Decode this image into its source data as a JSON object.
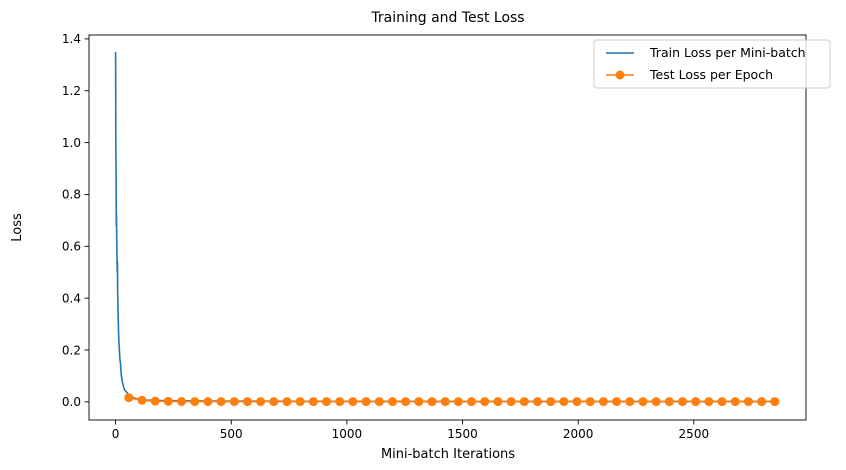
{
  "chart_data": {
    "type": "line",
    "title": "Training and Test Loss",
    "xlabel": "Mini-batch Iterations",
    "ylabel": "Loss",
    "xlim": [
      -115,
      2985
    ],
    "ylim": [
      -0.07,
      1.415
    ],
    "x_ticks": [
      0,
      500,
      1000,
      1500,
      2000,
      2500
    ],
    "x_tick_labels": [
      "0",
      "500",
      "1000",
      "1500",
      "2000",
      "2500"
    ],
    "y_ticks": [
      0.0,
      0.2,
      0.4,
      0.6,
      0.8,
      1.0,
      1.2,
      1.4
    ],
    "y_tick_labels": [
      "0.0",
      "0.2",
      "0.4",
      "0.6",
      "0.8",
      "1.0",
      "1.2",
      "1.4"
    ],
    "grid": false,
    "legend_position": "top-right",
    "series": [
      {
        "name": "Train Loss per Mini-batch",
        "color": "#1f77b4",
        "marker": "none",
        "x": [
          0,
          1,
          2,
          3,
          4,
          5,
          6,
          7,
          8,
          9,
          10,
          11,
          12,
          13,
          14,
          15,
          17,
          19,
          21,
          23,
          25,
          28,
          31,
          34,
          37,
          40,
          45,
          50,
          55,
          60,
          70,
          80,
          100,
          130,
          200,
          400,
          800,
          1500,
          2200,
          2850
        ],
        "y": [
          1.35,
          0.98,
          0.9,
          0.68,
          0.72,
          0.62,
          0.55,
          0.5,
          0.54,
          0.42,
          0.38,
          0.33,
          0.3,
          0.26,
          0.24,
          0.22,
          0.19,
          0.16,
          0.15,
          0.12,
          0.1,
          0.085,
          0.07,
          0.06,
          0.05,
          0.045,
          0.04,
          0.035,
          0.03,
          0.025,
          0.02,
          0.015,
          0.01,
          0.007,
          0.005,
          0.003,
          0.002,
          0.001,
          0.001,
          0.001
        ]
      },
      {
        "name": "Test Loss per Epoch",
        "color": "#ff7f0e",
        "marker": "circle",
        "x": [
          57,
          114,
          171,
          228,
          285,
          342,
          399,
          456,
          513,
          570,
          627,
          684,
          741,
          798,
          855,
          912,
          969,
          1026,
          1083,
          1140,
          1197,
          1254,
          1311,
          1368,
          1425,
          1482,
          1539,
          1596,
          1653,
          1710,
          1767,
          1824,
          1881,
          1938,
          1995,
          2052,
          2109,
          2166,
          2223,
          2280,
          2337,
          2394,
          2451,
          2508,
          2565,
          2622,
          2679,
          2736,
          2793,
          2850
        ],
        "y": [
          0.016,
          0.006,
          0.003,
          0.002,
          0.0015,
          0.001,
          0.001,
          0.001,
          0.001,
          0.001,
          0.001,
          0.001,
          0.001,
          0.001,
          0.001,
          0.001,
          0.001,
          0.001,
          0.001,
          0.001,
          0.001,
          0.001,
          0.001,
          0.001,
          0.001,
          0.001,
          0.001,
          0.001,
          0.001,
          0.001,
          0.001,
          0.001,
          0.001,
          0.001,
          0.001,
          0.001,
          0.001,
          0.001,
          0.001,
          0.001,
          0.001,
          0.001,
          0.001,
          0.001,
          0.001,
          0.001,
          0.001,
          0.001,
          0.001,
          0.001
        ]
      }
    ]
  }
}
